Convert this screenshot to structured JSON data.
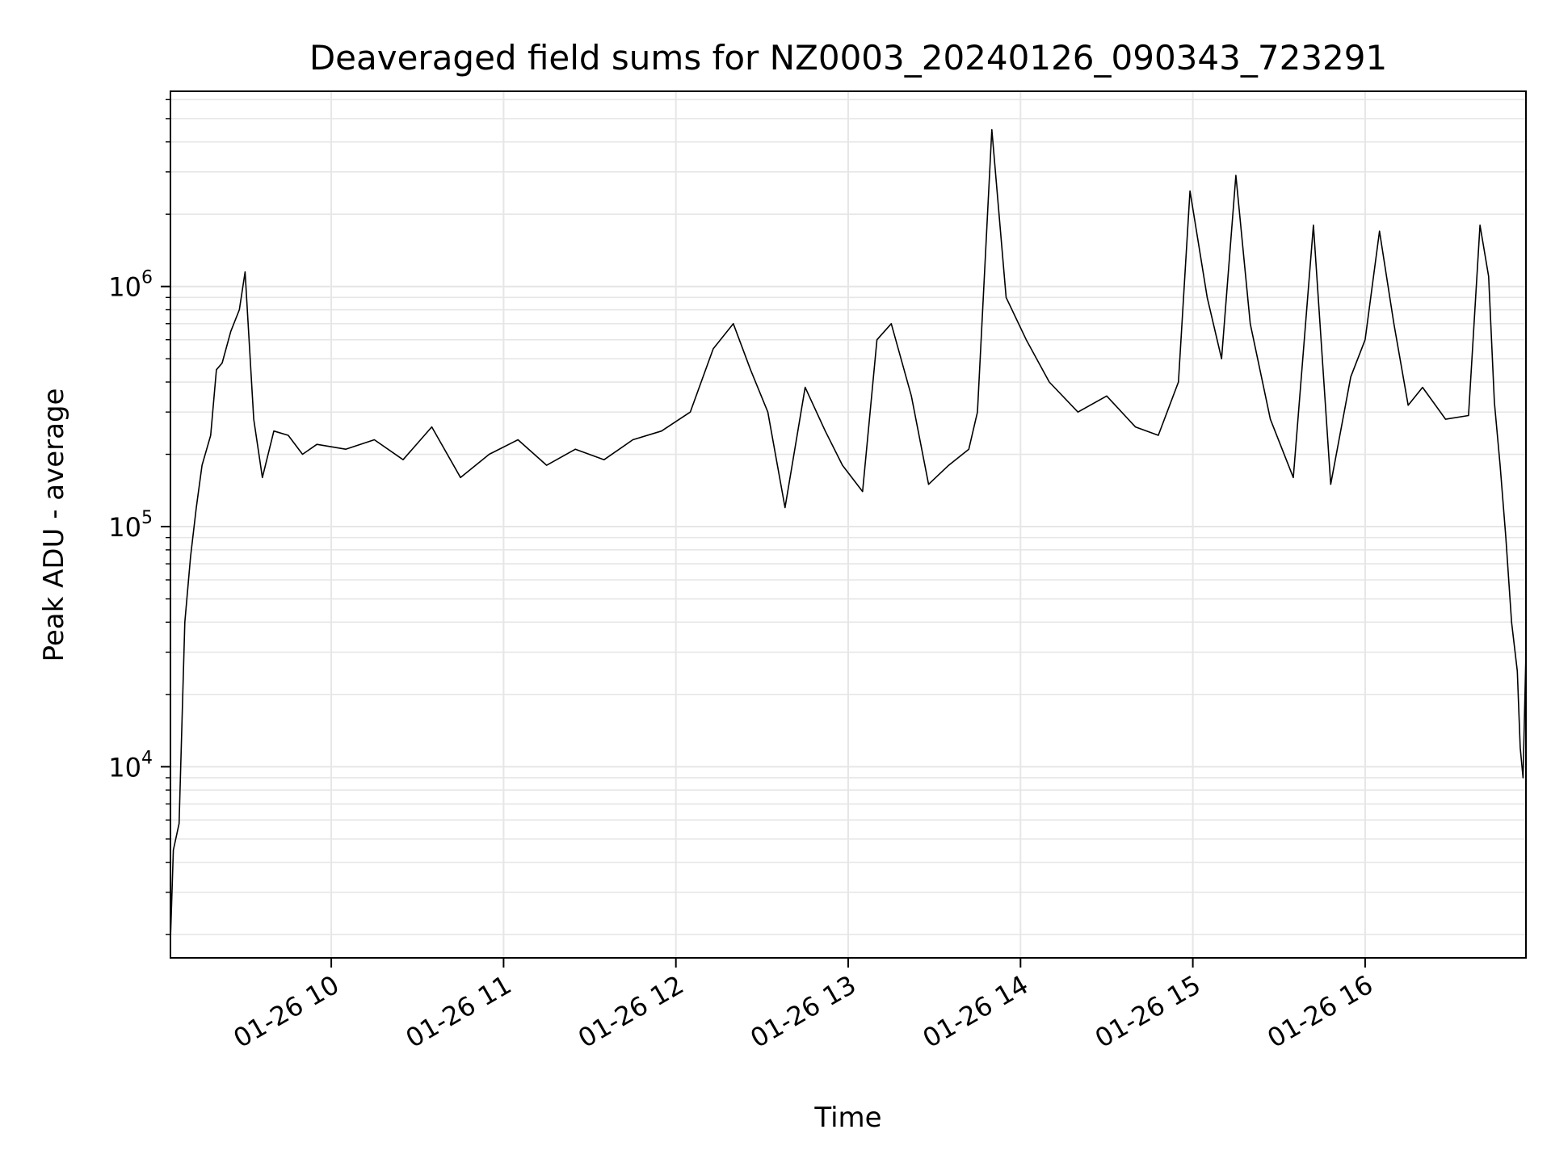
{
  "chart_data": {
    "type": "line",
    "title": "Deaveraged field sums for NZ0003_20240126_090343_723291",
    "xlabel": "Time",
    "ylabel": "Peak ADU - average",
    "x_type": "datetime",
    "xlim": [
      "2024-01-26 09:04",
      "2024-01-26 16:56"
    ],
    "x_ticks": [
      "2024-01-26 10:00",
      "2024-01-26 11:00",
      "2024-01-26 12:00",
      "2024-01-26 13:00",
      "2024-01-26 14:00",
      "2024-01-26 15:00",
      "2024-01-26 16:00"
    ],
    "x_tick_labels": [
      "01-26 10",
      "01-26 11",
      "01-26 12",
      "01-26 13",
      "01-26 14",
      "01-26 15",
      "01-26 16"
    ],
    "yscale": "log",
    "ylim": [
      1600,
      6500000
    ],
    "y_ticks": [
      {
        "value": 10000,
        "base": "10",
        "exp": "4"
      },
      {
        "value": 100000,
        "base": "10",
        "exp": "5"
      },
      {
        "value": 1000000,
        "base": "10",
        "exp": "6"
      }
    ],
    "grid": true,
    "line_color": "#000000",
    "grid_color": "#e6e6e6",
    "series": [
      {
        "x": [
          "2024-01-26 09:04",
          "2024-01-26 09:05",
          "2024-01-26 09:07",
          "2024-01-26 09:09",
          "2024-01-26 09:11",
          "2024-01-26 09:13",
          "2024-01-26 09:15",
          "2024-01-26 09:18",
          "2024-01-26 09:20",
          "2024-01-26 09:22",
          "2024-01-26 09:25",
          "2024-01-26 09:28",
          "2024-01-26 09:30",
          "2024-01-26 09:33",
          "2024-01-26 09:36",
          "2024-01-26 09:40",
          "2024-01-26 09:45",
          "2024-01-26 09:50",
          "2024-01-26 09:55",
          "2024-01-26 10:05",
          "2024-01-26 10:15",
          "2024-01-26 10:25",
          "2024-01-26 10:35",
          "2024-01-26 10:45",
          "2024-01-26 10:55",
          "2024-01-26 11:05",
          "2024-01-26 11:15",
          "2024-01-26 11:25",
          "2024-01-26 11:35",
          "2024-01-26 11:45",
          "2024-01-26 11:55",
          "2024-01-26 12:05",
          "2024-01-26 12:13",
          "2024-01-26 12:20",
          "2024-01-26 12:26",
          "2024-01-26 12:32",
          "2024-01-26 12:38",
          "2024-01-26 12:45",
          "2024-01-26 12:52",
          "2024-01-26 12:58",
          "2024-01-26 13:05",
          "2024-01-26 13:10",
          "2024-01-26 13:15",
          "2024-01-26 13:22",
          "2024-01-26 13:28",
          "2024-01-26 13:35",
          "2024-01-26 13:42",
          "2024-01-26 13:45",
          "2024-01-26 13:50",
          "2024-01-26 13:55",
          "2024-01-26 14:02",
          "2024-01-26 14:10",
          "2024-01-26 14:20",
          "2024-01-26 14:30",
          "2024-01-26 14:40",
          "2024-01-26 14:48",
          "2024-01-26 14:55",
          "2024-01-26 14:59",
          "2024-01-26 15:05",
          "2024-01-26 15:10",
          "2024-01-26 15:15",
          "2024-01-26 15:20",
          "2024-01-26 15:27",
          "2024-01-26 15:35",
          "2024-01-26 15:42",
          "2024-01-26 15:48",
          "2024-01-26 15:55",
          "2024-01-26 16:00",
          "2024-01-26 16:05",
          "2024-01-26 16:10",
          "2024-01-26 16:15",
          "2024-01-26 16:20",
          "2024-01-26 16:28",
          "2024-01-26 16:36",
          "2024-01-26 16:40",
          "2024-01-26 16:43",
          "2024-01-26 16:45",
          "2024-01-26 16:47",
          "2024-01-26 16:49",
          "2024-01-26 16:51",
          "2024-01-26 16:53",
          "2024-01-26 16:54",
          "2024-01-26 16:55",
          "2024-01-26 16:56"
        ],
        "y": [
          1900,
          4500,
          5800,
          40000,
          75000,
          120000,
          180000,
          240000,
          450000,
          480000,
          650000,
          800000,
          1150000,
          280000,
          160000,
          250000,
          240000,
          200000,
          220000,
          210000,
          230000,
          190000,
          260000,
          160000,
          200000,
          230000,
          180000,
          210000,
          190000,
          230000,
          250000,
          300000,
          550000,
          700000,
          450000,
          300000,
          120000,
          380000,
          250000,
          180000,
          140000,
          600000,
          700000,
          350000,
          150000,
          180000,
          210000,
          300000,
          4500000,
          900000,
          600000,
          400000,
          300000,
          350000,
          260000,
          240000,
          400000,
          2500000,
          900000,
          500000,
          2900000,
          700000,
          280000,
          160000,
          1800000,
          150000,
          420000,
          600000,
          1700000,
          700000,
          320000,
          380000,
          280000,
          290000,
          1800000,
          1100000,
          330000,
          180000,
          90000,
          40000,
          25000,
          12000,
          9000,
          30000
        ]
      }
    ]
  }
}
